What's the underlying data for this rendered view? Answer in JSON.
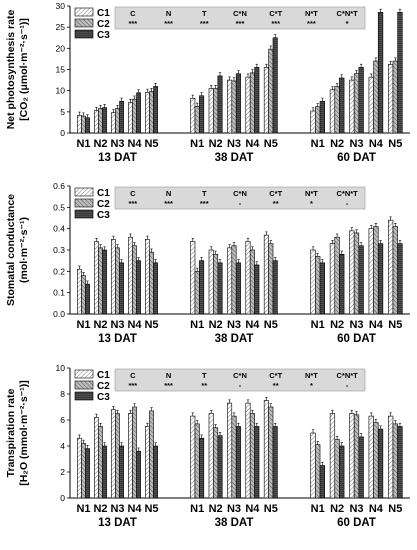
{
  "legend": [
    "C1",
    "C2",
    "C3"
  ],
  "panel_colors": {
    "C1": "#ffffff",
    "C2": "#aaaaaa",
    "C3": "#3a3a3a"
  },
  "chart_data": [
    {
      "type": "bar",
      "ylabel": "Net photosynthesis rate",
      "ylabel2": "[CO₂ (μmol·m⁻²·s⁻¹)]",
      "ylim": [
        0,
        30
      ],
      "yticks": [
        0,
        5,
        10,
        15,
        20,
        25,
        30
      ],
      "groups": [
        "13 DAT",
        "38 DAT",
        "60 DAT"
      ],
      "categories": [
        "N1",
        "N2",
        "N3",
        "N4",
        "N5"
      ],
      "series": [
        {
          "name": "C1",
          "values": [
            [
              4.2,
              5.3,
              4.8,
              7.2,
              9.6
            ],
            [
              8.2,
              10.5,
              12.5,
              13.2,
              15.5
            ],
            [
              5.2,
              10.2,
              12.5,
              13.2,
              16.2
            ]
          ]
        },
        {
          "name": "C2",
          "values": [
            [
              4.0,
              5.8,
              5.8,
              8.0,
              9.8
            ],
            [
              6.3,
              10.5,
              12.3,
              14.2,
              19.8
            ],
            [
              6.2,
              11.0,
              14.0,
              17.0,
              17.0
            ]
          ]
        },
        {
          "name": "C3",
          "values": [
            [
              3.6,
              6.0,
              7.5,
              9.5,
              11.0
            ],
            [
              8.8,
              13.5,
              14.0,
              15.5,
              22.5
            ],
            [
              7.5,
              13.0,
              15.5,
              28.5,
              28.5
            ]
          ]
        }
      ],
      "stats": {
        "headers": [
          "C",
          "N",
          "T",
          "C*N",
          "C*T",
          "N*T",
          "C*N*T"
        ],
        "values": [
          "***",
          "***",
          "***",
          "***",
          "***",
          "***",
          "*"
        ]
      }
    },
    {
      "type": "bar",
      "ylabel": "Stomatal conductance",
      "ylabel2": "(mol·m⁻²·s⁻¹)",
      "ylim": [
        0,
        0.6
      ],
      "yticks": [
        0.0,
        0.1,
        0.2,
        0.3,
        0.4,
        0.5,
        0.6
      ],
      "groups": [
        "13 DAT",
        "38 DAT",
        "60 DAT"
      ],
      "categories": [
        "N1",
        "N2",
        "N3",
        "N4",
        "N5"
      ],
      "series": [
        {
          "name": "C1",
          "values": [
            [
              0.21,
              0.34,
              0.35,
              0.36,
              0.35
            ],
            [
              0.34,
              0.3,
              0.31,
              0.34,
              0.37
            ],
            [
              0.3,
              0.33,
              0.39,
              0.4,
              0.44
            ]
          ]
        },
        {
          "name": "C2",
          "values": [
            [
              0.18,
              0.31,
              0.31,
              0.32,
              0.29
            ],
            [
              0.2,
              0.28,
              0.32,
              0.3,
              0.33
            ],
            [
              0.27,
              0.36,
              0.38,
              0.41,
              0.41
            ]
          ]
        },
        {
          "name": "C3",
          "values": [
            [
              0.14,
              0.3,
              0.24,
              0.25,
              0.24
            ],
            [
              0.25,
              0.24,
              0.24,
              0.23,
              0.25
            ],
            [
              0.24,
              0.28,
              0.32,
              0.33,
              0.33
            ]
          ]
        }
      ],
      "stats": {
        "headers": [
          "C",
          "N",
          "T",
          "C*N",
          "C*T",
          "N*T",
          "C*N*T"
        ],
        "values": [
          "***",
          "***",
          "***",
          "-",
          "**",
          "*",
          "-"
        ]
      }
    },
    {
      "type": "bar",
      "ylabel": "Transpiration rate",
      "ylabel2": "[H₂O (mmol·m⁻²·s⁻¹)]",
      "ylim": [
        0,
        10
      ],
      "yticks": [
        0,
        2,
        4,
        6,
        8,
        10
      ],
      "groups": [
        "13 DAT",
        "38 DAT",
        "60 DAT"
      ],
      "categories": [
        "N1",
        "N2",
        "N3",
        "N4",
        "N5"
      ],
      "series": [
        {
          "name": "C1",
          "values": [
            [
              4.6,
              6.2,
              6.8,
              6.5,
              5.5
            ],
            [
              6.3,
              6.5,
              7.3,
              7.3,
              7.5
            ],
            [
              5.0,
              6.5,
              6.5,
              6.3,
              6.3
            ]
          ]
        },
        {
          "name": "C2",
          "values": [
            [
              4.2,
              5.5,
              6.5,
              7.0,
              6.7
            ],
            [
              5.7,
              5.4,
              6.3,
              6.5,
              7.0
            ],
            [
              4.1,
              4.5,
              6.4,
              5.8,
              5.7
            ]
          ]
        },
        {
          "name": "C3",
          "values": [
            [
              3.8,
              4.0,
              4.0,
              3.6,
              4.0
            ],
            [
              4.6,
              4.8,
              5.5,
              5.5,
              5.5
            ],
            [
              2.5,
              4.0,
              4.7,
              5.3,
              5.5
            ]
          ]
        }
      ],
      "stats": {
        "headers": [
          "C",
          "N",
          "T",
          "C*N",
          "C*T",
          "N*T",
          "C*N*T"
        ],
        "values": [
          "***",
          "***",
          "**",
          "-",
          "**",
          "*",
          "-"
        ]
      }
    }
  ]
}
